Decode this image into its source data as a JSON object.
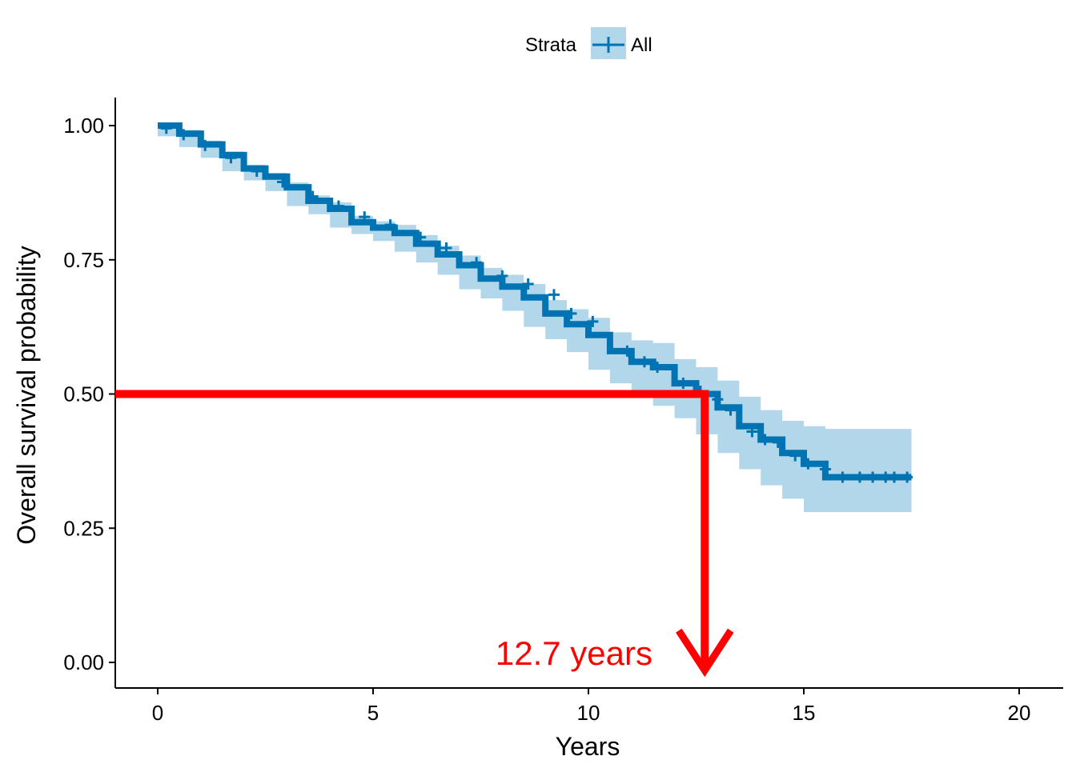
{
  "chart_data": {
    "type": "line",
    "xlabel": "Years",
    "ylabel": "Overall survival probability",
    "xlim": [
      -1,
      21
    ],
    "ylim": [
      -0.05,
      1.05
    ],
    "x_ticks": [
      0,
      5,
      10,
      15,
      20
    ],
    "x_tick_labels": [
      "0",
      "5",
      "10",
      "15",
      "20"
    ],
    "y_ticks": [
      0,
      0.25,
      0.5,
      0.75,
      1.0
    ],
    "y_tick_labels": [
      "0.00",
      "0.25",
      "0.50",
      "0.75",
      "1.00"
    ],
    "grid": false,
    "legend": {
      "position": "top",
      "title": "Strata",
      "entries": [
        "All"
      ]
    },
    "colors": {
      "line": "#0073b3",
      "ci": "#b3d7ea",
      "annotation": "#ff0000"
    },
    "series": [
      {
        "name": "All",
        "x": [
          0,
          0.5,
          1,
          1.5,
          2,
          2.5,
          3,
          3.5,
          4,
          4.5,
          5,
          5.5,
          6,
          6.5,
          7,
          7.5,
          8,
          8.5,
          9,
          9.5,
          10,
          10.5,
          11,
          11.5,
          12,
          12.5,
          13,
          13.5,
          14,
          14.5,
          15,
          15.5,
          16,
          16.5,
          17,
          17.5
        ],
        "y": [
          1.0,
          0.985,
          0.965,
          0.945,
          0.92,
          0.905,
          0.885,
          0.86,
          0.845,
          0.82,
          0.81,
          0.8,
          0.78,
          0.76,
          0.74,
          0.715,
          0.7,
          0.68,
          0.65,
          0.63,
          0.61,
          0.58,
          0.56,
          0.55,
          0.52,
          0.5,
          0.475,
          0.44,
          0.415,
          0.39,
          0.37,
          0.345,
          0.345,
          0.345,
          0.345,
          0.345
        ],
        "ci_lower": [
          1.0,
          0.98,
          0.96,
          0.94,
          0.915,
          0.898,
          0.878,
          0.85,
          0.835,
          0.81,
          0.798,
          0.785,
          0.765,
          0.745,
          0.722,
          0.695,
          0.678,
          0.655,
          0.625,
          0.602,
          0.578,
          0.545,
          0.52,
          0.505,
          0.478,
          0.455,
          0.425,
          0.39,
          0.36,
          0.33,
          0.305,
          0.28,
          0.28,
          0.28,
          0.28,
          0.28
        ],
        "ci_upper": [
          1.0,
          0.992,
          0.972,
          0.952,
          0.927,
          0.912,
          0.894,
          0.87,
          0.857,
          0.832,
          0.822,
          0.815,
          0.796,
          0.776,
          0.758,
          0.735,
          0.722,
          0.705,
          0.675,
          0.658,
          0.642,
          0.615,
          0.6,
          0.595,
          0.565,
          0.55,
          0.525,
          0.495,
          0.47,
          0.45,
          0.44,
          0.435,
          0.435,
          0.435,
          0.435,
          0.435
        ],
        "censor_x": [
          0.2,
          0.6,
          1.1,
          1.7,
          2.3,
          2.9,
          3.6,
          4.2,
          4.8,
          5.4,
          6.1,
          6.7,
          7.4,
          8.0,
          8.6,
          9.2,
          9.6,
          10.1,
          10.9,
          11.3,
          11.6,
          12.2,
          12.6,
          13.0,
          13.3,
          13.8,
          14.1,
          14.4,
          14.8,
          15.1,
          15.5,
          15.9,
          16.3,
          16.6,
          16.9,
          17.1,
          17.4
        ],
        "censor_y": [
          0.995,
          0.983,
          0.963,
          0.94,
          0.915,
          0.895,
          0.868,
          0.85,
          0.83,
          0.815,
          0.792,
          0.772,
          0.745,
          0.72,
          0.705,
          0.685,
          0.65,
          0.635,
          0.58,
          0.56,
          0.55,
          0.52,
          0.505,
          0.49,
          0.47,
          0.43,
          0.415,
          0.41,
          0.385,
          0.37,
          0.36,
          0.345,
          0.345,
          0.345,
          0.345,
          0.345,
          0.345
        ]
      }
    ],
    "median_survival": {
      "x": 12.7,
      "y": 0.5,
      "label": "12.7 years"
    }
  }
}
